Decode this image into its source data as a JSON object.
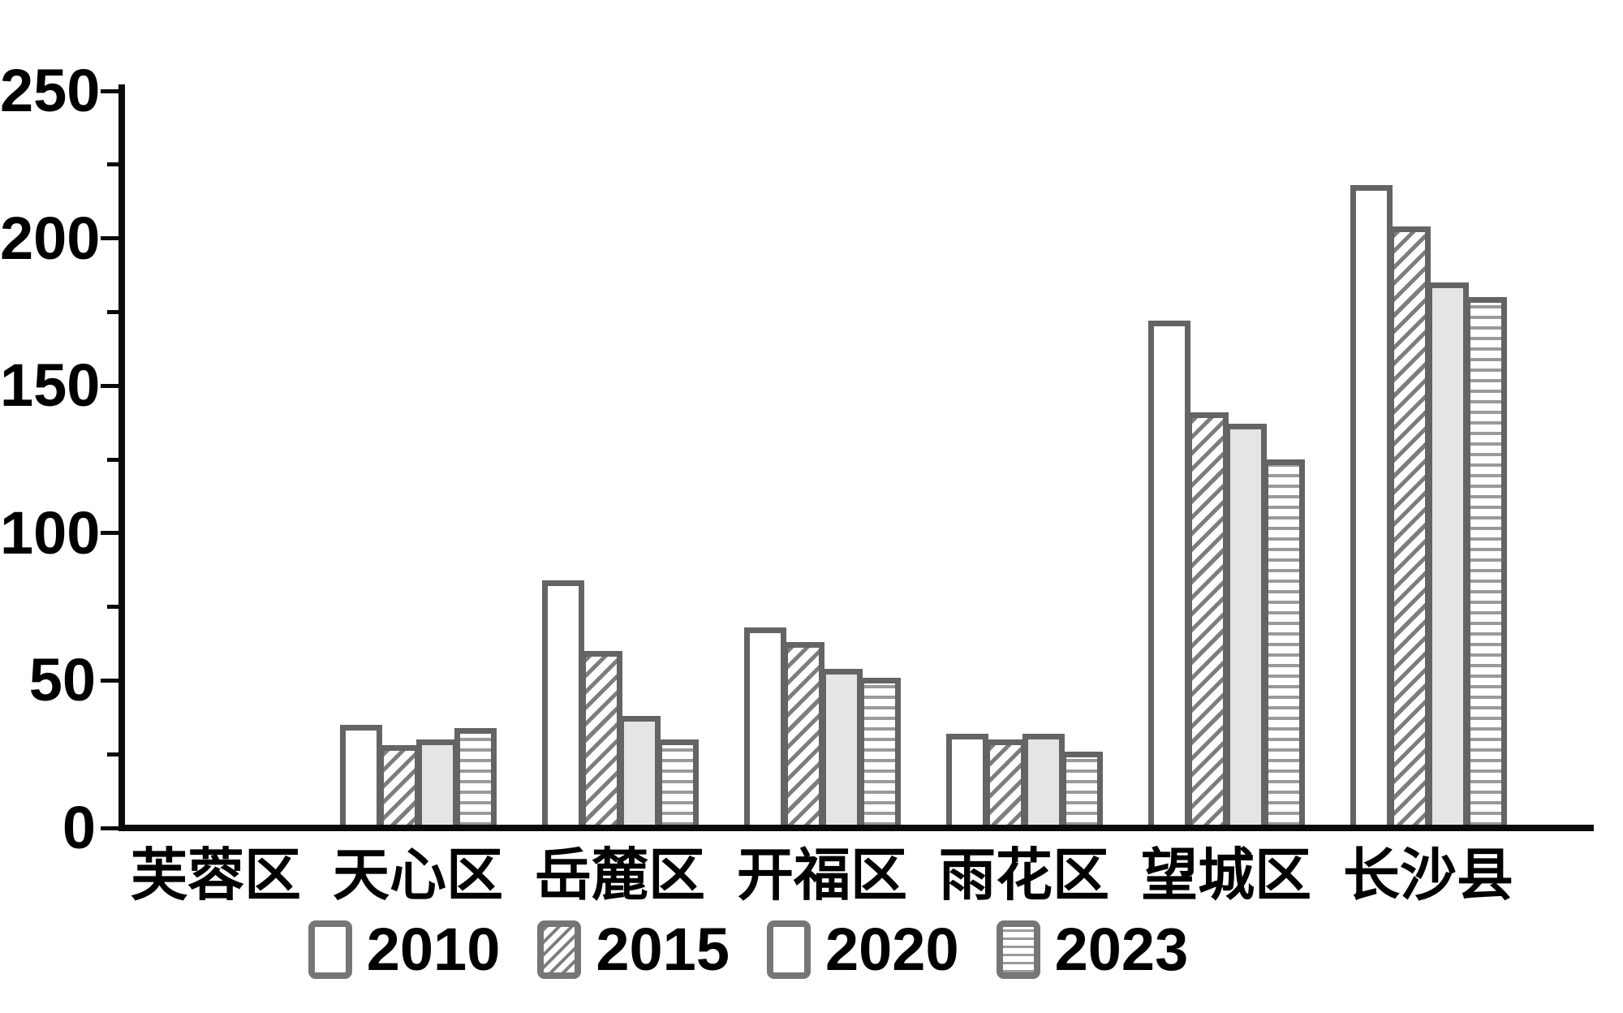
{
  "chart_data": {
    "type": "bar",
    "title": "",
    "xlabel": "",
    "ylabel": "",
    "categories": [
      "芙蓉区",
      "天心区",
      "岳麓区",
      "开福区",
      "雨花区",
      "望城区",
      "长沙县"
    ],
    "series": [
      {
        "name": "2010",
        "pattern": "solid-white",
        "values": [
          0,
          35,
          84,
          68,
          32,
          172,
          218
        ]
      },
      {
        "name": "2015",
        "pattern": "diagonal-hatch",
        "values": [
          0,
          28,
          60,
          63,
          30,
          141,
          204
        ]
      },
      {
        "name": "2020",
        "pattern": "solid-gray",
        "values": [
          0,
          30,
          38,
          54,
          32,
          137,
          185
        ]
      },
      {
        "name": "2023",
        "pattern": "horizontal-stripes",
        "values": [
          0,
          34,
          30,
          51,
          26,
          125,
          180
        ]
      }
    ],
    "ylim": [
      0,
      250
    ],
    "y_major_ticks": [
      0,
      50,
      100,
      150,
      200,
      250
    ],
    "y_minor_ticks": [
      25,
      75,
      125,
      175,
      225
    ],
    "grid": false,
    "legend_position": "bottom",
    "legend_labels": [
      "2010",
      "2015",
      "2020",
      "2023"
    ],
    "colors": {
      "axis": "#0a0a0a",
      "text": "#000000",
      "bar_border": "#646464",
      "gray_fill": "#e5e5e5",
      "hatch_line": "#7d7d7d",
      "stripe_line": "#9a9a9a"
    }
  }
}
